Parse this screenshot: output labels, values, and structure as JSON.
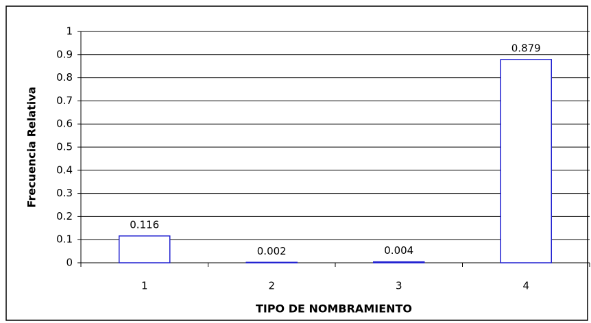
{
  "chart_data": {
    "type": "bar",
    "xlabel": "TIPO DE NOMBRAMIENTO",
    "ylabel": "Frecuencia Relativa",
    "categories": [
      "1",
      "2",
      "3",
      "4"
    ],
    "values": [
      0.116,
      0.002,
      0.004,
      0.879
    ],
    "color": "#1f1fd0",
    "ylim": [
      0,
      1
    ],
    "yticks": [
      0,
      0.1,
      0.2,
      0.3,
      0.4,
      0.5,
      0.6,
      0.7,
      0.8,
      0.9,
      1
    ],
    "grid": true
  }
}
